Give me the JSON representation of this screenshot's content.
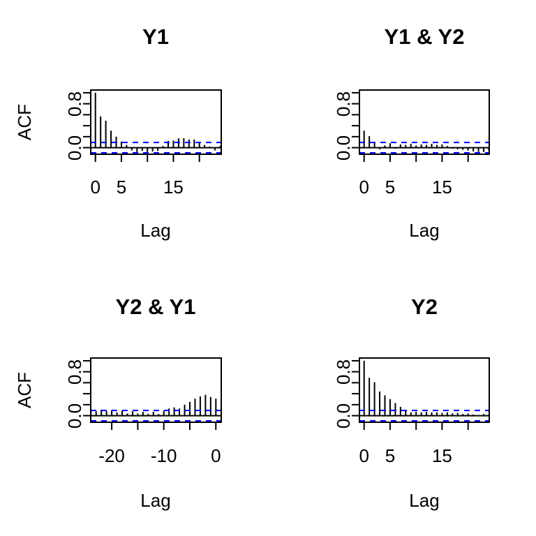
{
  "figure": {
    "background_color": "#ffffff",
    "axis_color": "#000000",
    "bar_color": "#000000",
    "conf_line_color": "#0000ff",
    "conf_bound": 0.095
  },
  "chart_data": {
    "type": "bar",
    "subtype": "acf-cross-correlation-matrix",
    "layout": "2x2 grid",
    "grid": false,
    "legend": "none",
    "panels": [
      {
        "title": "Y1",
        "xlab": "Lag",
        "ylab": "ACF",
        "ylim": [
          -0.12,
          1.05
        ],
        "lags": [
          0,
          1,
          2,
          3,
          4,
          5,
          6,
          7,
          8,
          9,
          10,
          11,
          12,
          13,
          14,
          15,
          16,
          17,
          18,
          19,
          20,
          21,
          22,
          23,
          24
        ],
        "values": [
          1.0,
          0.57,
          0.49,
          0.31,
          0.2,
          0.11,
          0.05,
          -0.05,
          -0.08,
          -0.06,
          -0.08,
          -0.07,
          -0.06,
          0.03,
          0.12,
          0.13,
          0.17,
          0.17,
          0.15,
          0.15,
          0.1,
          0.05,
          0.02,
          -0.05,
          0.03
        ],
        "conf_bound": 0.095,
        "yticks": [
          {
            "value": 0.0,
            "label": "0.0"
          },
          {
            "value": 0.2,
            "label": ""
          },
          {
            "value": 0.4,
            "label": ""
          },
          {
            "value": 0.6,
            "label": ""
          },
          {
            "value": 0.8,
            "label": "0.8"
          },
          {
            "value": 1.0,
            "label": ""
          }
        ],
        "xticks": [
          {
            "lag": 0,
            "label": "0"
          },
          {
            "lag": 5,
            "label": "5"
          },
          {
            "lag": 10,
            "label": ""
          },
          {
            "lag": 15,
            "label": "15"
          },
          {
            "lag": 20,
            "label": ""
          }
        ]
      },
      {
        "title": "Y1 & Y2",
        "xlab": "Lag",
        "ylab": "",
        "ylim": [
          -0.12,
          1.05
        ],
        "lags": [
          0,
          1,
          2,
          3,
          4,
          5,
          6,
          7,
          8,
          9,
          10,
          11,
          12,
          13,
          14,
          15,
          16,
          17,
          18,
          19,
          20,
          21,
          22,
          23,
          24
        ],
        "values": [
          0.31,
          0.21,
          0.1,
          -0.03,
          0.04,
          0.08,
          -0.02,
          0.06,
          0.05,
          0.07,
          0.04,
          0.06,
          0.05,
          0.07,
          0.05,
          0.06,
          0.03,
          -0.02,
          -0.03,
          -0.04,
          -0.05,
          -0.07,
          -0.08,
          -0.08,
          -0.06
        ],
        "conf_bound": 0.095,
        "yticks": [
          {
            "value": 0.0,
            "label": "0.0"
          },
          {
            "value": 0.2,
            "label": ""
          },
          {
            "value": 0.4,
            "label": ""
          },
          {
            "value": 0.6,
            "label": ""
          },
          {
            "value": 0.8,
            "label": "0.8"
          },
          {
            "value": 1.0,
            "label": ""
          }
        ],
        "xticks": [
          {
            "lag": 0,
            "label": "0"
          },
          {
            "lag": 5,
            "label": "5"
          },
          {
            "lag": 10,
            "label": ""
          },
          {
            "lag": 15,
            "label": "15"
          },
          {
            "lag": 20,
            "label": ""
          }
        ]
      },
      {
        "title": "Y2 & Y1",
        "xlab": "Lag",
        "ylab": "ACF",
        "ylim": [
          -0.12,
          1.05
        ],
        "lags": [
          -24,
          -23,
          -22,
          -21,
          -20,
          -19,
          -18,
          -17,
          -16,
          -15,
          -14,
          -13,
          -12,
          -11,
          -10,
          -9,
          -8,
          -7,
          -6,
          -5,
          -4,
          -3,
          -2,
          -1,
          0
        ],
        "values": [
          0.1,
          0.08,
          0.11,
          0.08,
          0.1,
          0.06,
          0.09,
          0.04,
          0.08,
          0.04,
          0.07,
          0.03,
          0.07,
          0.03,
          0.09,
          0.13,
          0.15,
          0.13,
          0.2,
          0.25,
          0.31,
          0.35,
          0.38,
          0.34,
          0.31
        ],
        "conf_bound": 0.095,
        "yticks": [
          {
            "value": 0.0,
            "label": "0.0"
          },
          {
            "value": 0.2,
            "label": ""
          },
          {
            "value": 0.4,
            "label": ""
          },
          {
            "value": 0.6,
            "label": ""
          },
          {
            "value": 0.8,
            "label": "0.8"
          },
          {
            "value": 1.0,
            "label": ""
          }
        ],
        "xticks": [
          {
            "lag": -20,
            "label": "-20"
          },
          {
            "lag": -15,
            "label": ""
          },
          {
            "lag": -10,
            "label": "-10"
          },
          {
            "lag": -5,
            "label": ""
          },
          {
            "lag": 0,
            "label": "0"
          }
        ]
      },
      {
        "title": "Y2",
        "xlab": "Lag",
        "ylab": "",
        "ylim": [
          -0.12,
          1.05
        ],
        "lags": [
          0,
          1,
          2,
          3,
          4,
          5,
          6,
          7,
          8,
          9,
          10,
          11,
          12,
          13,
          14,
          15,
          16,
          17,
          18,
          19,
          20,
          21,
          22,
          23,
          24
        ],
        "values": [
          1.0,
          0.69,
          0.61,
          0.44,
          0.37,
          0.3,
          0.23,
          0.16,
          0.09,
          0.06,
          0.07,
          0.06,
          0.07,
          0.06,
          0.06,
          0.05,
          0.06,
          0.04,
          0.05,
          0.03,
          0.04,
          0.02,
          0.01,
          0.03,
          0.02
        ],
        "conf_bound": 0.095,
        "yticks": [
          {
            "value": 0.0,
            "label": "0.0"
          },
          {
            "value": 0.2,
            "label": ""
          },
          {
            "value": 0.4,
            "label": ""
          },
          {
            "value": 0.6,
            "label": ""
          },
          {
            "value": 0.8,
            "label": "0.8"
          },
          {
            "value": 1.0,
            "label": ""
          }
        ],
        "xticks": [
          {
            "lag": 0,
            "label": "0"
          },
          {
            "lag": 5,
            "label": "5"
          },
          {
            "lag": 10,
            "label": ""
          },
          {
            "lag": 15,
            "label": "15"
          },
          {
            "lag": 20,
            "label": ""
          }
        ]
      }
    ]
  }
}
